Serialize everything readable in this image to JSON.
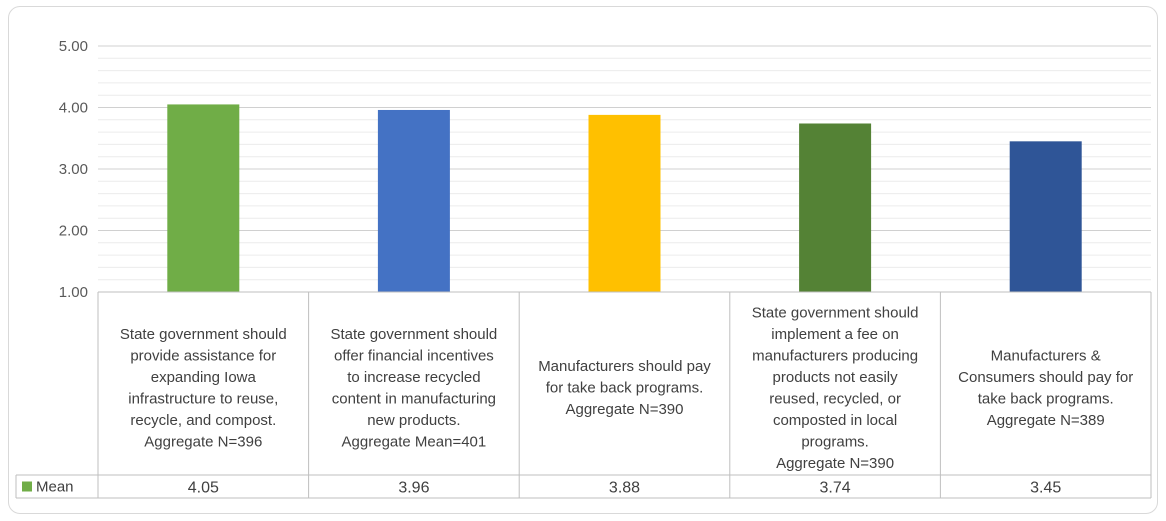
{
  "chart_data": {
    "type": "bar",
    "categories": [
      "State government should provide assistance for expanding Iowa infrastructure to reuse, recycle, and compost. Aggregate N=396",
      "State government should offer financial incentives to increase recycled content in manufacturing new products. Aggregate Mean=401",
      "Manufacturers should pay for take back programs. Aggregate N=390",
      "State government should implement a fee on manufacturers producing products not easily reused, recycled, or composted in local programs. Aggregate N=390",
      "Manufacturers & Consumers should pay for take back programs. Aggregate N=389"
    ],
    "category_lines": [
      [
        "State government should",
        "provide assistance for",
        "expanding Iowa",
        "infrastructure to reuse,",
        "recycle, and compost.",
        "Aggregate N=396"
      ],
      [
        "State government should",
        "offer financial incentives",
        "to increase recycled",
        "content in manufacturing",
        "new products.",
        "Aggregate Mean=401"
      ],
      [
        "Manufacturers should pay",
        "for take back programs.",
        "Aggregate N=390"
      ],
      [
        "State government should",
        "implement a fee on",
        "manufacturers producing",
        "products not easily",
        "reused, recycled, or",
        "composted in local",
        "programs.",
        "Aggregate N=390"
      ],
      [
        "Manufacturers &",
        "Consumers should pay for",
        "take back programs.",
        "Aggregate N=389"
      ]
    ],
    "series": [
      {
        "name": "Mean",
        "values": [
          4.05,
          3.96,
          3.88,
          3.74,
          3.45
        ],
        "value_labels": [
          "4.05",
          "3.96",
          "3.88",
          "3.74",
          "3.45"
        ]
      }
    ],
    "bar_colors": [
      "#70ad47",
      "#4472c4",
      "#ffc000",
      "#548235",
      "#2f5597"
    ],
    "legend_color": "#70ad47",
    "ylim": [
      1,
      5
    ],
    "yticks": [
      "1.00",
      "2.00",
      "3.00",
      "4.00",
      "5.00"
    ],
    "ytick_values": [
      1,
      2,
      3,
      4,
      5
    ],
    "grid": true,
    "minor_grid_step": 0.2,
    "data_table": true
  }
}
